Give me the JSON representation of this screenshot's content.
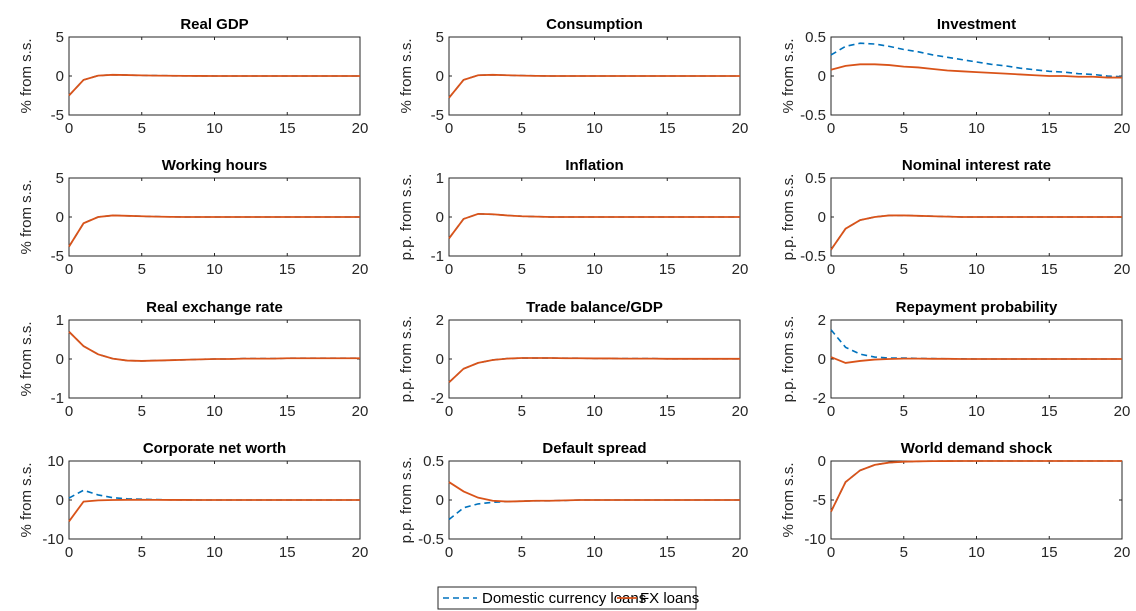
{
  "colors": {
    "domestic": "#0072BD",
    "fx": "#D95319",
    "axis": "#262626"
  },
  "legend": {
    "placement": "bottom-center",
    "items": [
      {
        "label": "Domestic currency loans",
        "style": "dashed",
        "color": "#0072BD"
      },
      {
        "label": "FX loans",
        "style": "solid",
        "color": "#D95319"
      }
    ]
  },
  "chart_data": [
    {
      "type": "line",
      "title": "Real GDP",
      "ylabel": "% from s.s.",
      "xlim": [
        0,
        20
      ],
      "ylim": [
        -5,
        5
      ],
      "xticks": [
        0,
        5,
        10,
        15,
        20
      ],
      "yticks": [
        -5,
        0,
        5
      ],
      "x": [
        0,
        1,
        2,
        3,
        4,
        5,
        6,
        7,
        8,
        9,
        10,
        11,
        12,
        13,
        14,
        15,
        16,
        17,
        18,
        19,
        20
      ],
      "series": [
        {
          "name": "Domestic currency loans",
          "values": [
            -2.5,
            -0.5,
            0.05,
            0.15,
            0.12,
            0.08,
            0.05,
            0.03,
            0.02,
            0.01,
            0,
            0,
            0,
            0,
            0,
            0,
            0,
            0,
            0,
            0,
            0
          ]
        },
        {
          "name": "FX loans",
          "values": [
            -2.5,
            -0.5,
            0.05,
            0.15,
            0.12,
            0.08,
            0.05,
            0.03,
            0.02,
            0.01,
            0,
            0,
            0,
            0,
            0,
            0,
            0,
            0,
            0,
            0,
            0
          ]
        }
      ]
    },
    {
      "type": "line",
      "title": "Consumption",
      "ylabel": "% from s.s.",
      "xlim": [
        0,
        20
      ],
      "ylim": [
        -5,
        5
      ],
      "xticks": [
        0,
        5,
        10,
        15,
        20
      ],
      "yticks": [
        -5,
        0,
        5
      ],
      "x": [
        0,
        1,
        2,
        3,
        4,
        5,
        6,
        7,
        8,
        9,
        10,
        11,
        12,
        13,
        14,
        15,
        16,
        17,
        18,
        19,
        20
      ],
      "series": [
        {
          "name": "Domestic currency loans",
          "values": [
            -2.8,
            -0.5,
            0.1,
            0.15,
            0.1,
            0.05,
            0.02,
            0,
            0,
            0,
            0,
            0,
            0,
            0,
            0,
            0,
            0,
            0,
            0,
            0,
            0
          ]
        },
        {
          "name": "FX loans",
          "values": [
            -2.8,
            -0.5,
            0.1,
            0.15,
            0.1,
            0.05,
            0.02,
            0,
            0,
            0,
            0,
            0,
            0,
            0,
            0,
            0,
            0,
            0,
            0,
            0,
            0
          ]
        }
      ]
    },
    {
      "type": "line",
      "title": "Investment",
      "ylabel": "% from s.s.",
      "xlim": [
        0,
        20
      ],
      "ylim": [
        -0.5,
        0.5
      ],
      "xticks": [
        0,
        5,
        10,
        15,
        20
      ],
      "yticks": [
        -0.5,
        0,
        0.5
      ],
      "x": [
        0,
        1,
        2,
        3,
        4,
        5,
        6,
        7,
        8,
        9,
        10,
        11,
        12,
        13,
        14,
        15,
        16,
        17,
        18,
        19,
        20
      ],
      "series": [
        {
          "name": "Domestic currency loans",
          "values": [
            0.27,
            0.38,
            0.42,
            0.41,
            0.38,
            0.34,
            0.31,
            0.27,
            0.24,
            0.21,
            0.18,
            0.15,
            0.13,
            0.1,
            0.08,
            0.06,
            0.05,
            0.03,
            0.02,
            0.0,
            -0.01
          ]
        },
        {
          "name": "FX loans",
          "values": [
            0.08,
            0.13,
            0.15,
            0.15,
            0.14,
            0.12,
            0.11,
            0.09,
            0.07,
            0.06,
            0.05,
            0.04,
            0.03,
            0.02,
            0.01,
            0.0,
            0.0,
            -0.01,
            -0.01,
            -0.02,
            -0.02
          ]
        }
      ]
    },
    {
      "type": "line",
      "title": "Working hours",
      "ylabel": "% from s.s.",
      "xlim": [
        0,
        20
      ],
      "ylim": [
        -5,
        5
      ],
      "xticks": [
        0,
        5,
        10,
        15,
        20
      ],
      "yticks": [
        -5,
        0,
        5
      ],
      "x": [
        0,
        1,
        2,
        3,
        4,
        5,
        6,
        7,
        8,
        9,
        10,
        11,
        12,
        13,
        14,
        15,
        16,
        17,
        18,
        19,
        20
      ],
      "series": [
        {
          "name": "Domestic currency loans",
          "values": [
            -3.8,
            -0.8,
            0.0,
            0.2,
            0.15,
            0.1,
            0.05,
            0.02,
            0,
            0,
            0,
            0,
            0,
            0,
            0,
            0,
            0,
            0,
            0,
            0,
            0
          ]
        },
        {
          "name": "FX loans",
          "values": [
            -3.8,
            -0.8,
            0.0,
            0.2,
            0.15,
            0.1,
            0.05,
            0.02,
            0,
            0,
            0,
            0,
            0,
            0,
            0,
            0,
            0,
            0,
            0,
            0,
            0
          ]
        }
      ]
    },
    {
      "type": "line",
      "title": "Inflation",
      "ylabel": "p.p. from s.s.",
      "xlim": [
        0,
        20
      ],
      "ylim": [
        -1,
        1
      ],
      "xticks": [
        0,
        5,
        10,
        15,
        20
      ],
      "yticks": [
        -1,
        0,
        1
      ],
      "x": [
        0,
        1,
        2,
        3,
        4,
        5,
        6,
        7,
        8,
        9,
        10,
        11,
        12,
        13,
        14,
        15,
        16,
        17,
        18,
        19,
        20
      ],
      "series": [
        {
          "name": "Domestic currency loans",
          "values": [
            -0.55,
            -0.05,
            0.08,
            0.07,
            0.04,
            0.02,
            0.01,
            0,
            0,
            0,
            0,
            0,
            0,
            0,
            0,
            0,
            0,
            0,
            0,
            0,
            0
          ]
        },
        {
          "name": "FX loans",
          "values": [
            -0.55,
            -0.05,
            0.08,
            0.07,
            0.04,
            0.02,
            0.01,
            0,
            0,
            0,
            0,
            0,
            0,
            0,
            0,
            0,
            0,
            0,
            0,
            0,
            0
          ]
        }
      ]
    },
    {
      "type": "line",
      "title": "Nominal interest rate",
      "ylabel": "p.p. from s.s.",
      "xlim": [
        0,
        20
      ],
      "ylim": [
        -0.5,
        0.5
      ],
      "xticks": [
        0,
        5,
        10,
        15,
        20
      ],
      "yticks": [
        -0.5,
        0,
        0.5
      ],
      "x": [
        0,
        1,
        2,
        3,
        4,
        5,
        6,
        7,
        8,
        9,
        10,
        11,
        12,
        13,
        14,
        15,
        16,
        17,
        18,
        19,
        20
      ],
      "series": [
        {
          "name": "Domestic currency loans",
          "values": [
            -0.42,
            -0.15,
            -0.04,
            0.0,
            0.02,
            0.02,
            0.015,
            0.01,
            0.005,
            0,
            0,
            0,
            0,
            0,
            0,
            0,
            0,
            0,
            0,
            0,
            0
          ]
        },
        {
          "name": "FX loans",
          "values": [
            -0.42,
            -0.15,
            -0.04,
            0.0,
            0.02,
            0.02,
            0.015,
            0.01,
            0.005,
            0,
            0,
            0,
            0,
            0,
            0,
            0,
            0,
            0,
            0,
            0,
            0
          ]
        }
      ]
    },
    {
      "type": "line",
      "title": "Real exchange rate",
      "ylabel": "% from s.s.",
      "xlim": [
        0,
        20
      ],
      "ylim": [
        -1,
        1
      ],
      "xticks": [
        0,
        5,
        10,
        15,
        20
      ],
      "yticks": [
        -1,
        0,
        1
      ],
      "x": [
        0,
        1,
        2,
        3,
        4,
        5,
        6,
        7,
        8,
        9,
        10,
        11,
        12,
        13,
        14,
        15,
        16,
        17,
        18,
        19,
        20
      ],
      "series": [
        {
          "name": "Domestic currency loans",
          "values": [
            0.7,
            0.33,
            0.12,
            0.01,
            -0.04,
            -0.05,
            -0.04,
            -0.03,
            -0.02,
            -0.01,
            0,
            0,
            0.01,
            0.01,
            0.01,
            0.02,
            0.02,
            0.02,
            0.02,
            0.02,
            0.02
          ]
        },
        {
          "name": "FX loans",
          "values": [
            0.7,
            0.33,
            0.12,
            0.01,
            -0.04,
            -0.05,
            -0.04,
            -0.03,
            -0.02,
            -0.01,
            0,
            0,
            0.01,
            0.01,
            0.01,
            0.02,
            0.02,
            0.02,
            0.02,
            0.02,
            0.02
          ]
        }
      ]
    },
    {
      "type": "line",
      "title": "Trade balance/GDP",
      "ylabel": "p.p. from s.s.",
      "xlim": [
        0,
        20
      ],
      "ylim": [
        -2,
        2
      ],
      "xticks": [
        0,
        5,
        10,
        15,
        20
      ],
      "yticks": [
        -2,
        0,
        2
      ],
      "x": [
        0,
        1,
        2,
        3,
        4,
        5,
        6,
        7,
        8,
        9,
        10,
        11,
        12,
        13,
        14,
        15,
        16,
        17,
        18,
        19,
        20
      ],
      "series": [
        {
          "name": "Domestic currency loans",
          "values": [
            -1.2,
            -0.5,
            -0.2,
            -0.05,
            0.02,
            0.05,
            0.05,
            0.05,
            0.04,
            0.04,
            0.03,
            0.03,
            0.02,
            0.02,
            0.02,
            0.01,
            0.01,
            0.01,
            0.01,
            0.01,
            0.01
          ]
        },
        {
          "name": "FX loans",
          "values": [
            -1.2,
            -0.5,
            -0.2,
            -0.05,
            0.02,
            0.05,
            0.05,
            0.05,
            0.04,
            0.04,
            0.03,
            0.03,
            0.02,
            0.02,
            0.02,
            0.01,
            0.01,
            0.01,
            0.01,
            0.01,
            0.01
          ]
        }
      ]
    },
    {
      "type": "line",
      "title": "Repayment probability",
      "ylabel": "p.p. from s.s.",
      "xlim": [
        0,
        20
      ],
      "ylim": [
        -2,
        2
      ],
      "xticks": [
        0,
        5,
        10,
        15,
        20
      ],
      "yticks": [
        -2,
        0,
        2
      ],
      "x": [
        0,
        1,
        2,
        3,
        4,
        5,
        6,
        7,
        8,
        9,
        10,
        11,
        12,
        13,
        14,
        15,
        16,
        17,
        18,
        19,
        20
      ],
      "series": [
        {
          "name": "Domestic currency loans",
          "values": [
            1.5,
            0.6,
            0.25,
            0.1,
            0.05,
            0.05,
            0.03,
            0.02,
            0.01,
            0.01,
            0,
            0,
            0,
            0,
            0,
            0,
            0,
            0,
            0,
            0,
            0
          ]
        },
        {
          "name": "FX loans",
          "values": [
            0.1,
            -0.2,
            -0.1,
            -0.03,
            0.0,
            0.02,
            0.02,
            0.01,
            0.01,
            0,
            0,
            0,
            0,
            0,
            0,
            0,
            0,
            0,
            0,
            0,
            0
          ]
        }
      ]
    },
    {
      "type": "line",
      "title": "Corporate net worth",
      "ylabel": "% from s.s.",
      "xlim": [
        0,
        20
      ],
      "ylim": [
        -10,
        10
      ],
      "xticks": [
        0,
        5,
        10,
        15,
        20
      ],
      "yticks": [
        -10,
        0,
        10
      ],
      "x": [
        0,
        1,
        2,
        3,
        4,
        5,
        6,
        7,
        8,
        9,
        10,
        11,
        12,
        13,
        14,
        15,
        16,
        17,
        18,
        19,
        20
      ],
      "series": [
        {
          "name": "Domestic currency loans",
          "values": [
            0.5,
            2.5,
            1.3,
            0.6,
            0.3,
            0.2,
            0.1,
            0.05,
            0.02,
            0,
            0,
            0,
            0,
            0,
            0,
            0,
            0,
            0,
            0,
            0,
            0
          ]
        },
        {
          "name": "FX loans",
          "values": [
            -5.5,
            -0.4,
            -0.1,
            0.0,
            0.05,
            0.05,
            0.03,
            0.02,
            0.01,
            0,
            0,
            0,
            0,
            0,
            0,
            0,
            0,
            0,
            0,
            0,
            0
          ]
        }
      ]
    },
    {
      "type": "line",
      "title": "Default spread",
      "ylabel": "p.p. from s.s.",
      "xlim": [
        0,
        20
      ],
      "ylim": [
        -0.5,
        0.5
      ],
      "xticks": [
        0,
        5,
        10,
        15,
        20
      ],
      "yticks": [
        -0.5,
        0,
        0.5
      ],
      "x": [
        0,
        1,
        2,
        3,
        4,
        5,
        6,
        7,
        8,
        9,
        10,
        11,
        12,
        13,
        14,
        15,
        16,
        17,
        18,
        19,
        20
      ],
      "series": [
        {
          "name": "Domestic currency loans",
          "values": [
            -0.25,
            -0.1,
            -0.05,
            -0.03,
            -0.02,
            -0.015,
            -0.01,
            -0.01,
            -0.005,
            0,
            0,
            0,
            0,
            0,
            0,
            0,
            0,
            0,
            0,
            0,
            0
          ]
        },
        {
          "name": "FX loans",
          "values": [
            0.23,
            0.11,
            0.03,
            -0.01,
            -0.02,
            -0.015,
            -0.01,
            -0.01,
            -0.005,
            0,
            0,
            0,
            0,
            0,
            0,
            0,
            0,
            0,
            0,
            0,
            0
          ]
        }
      ]
    },
    {
      "type": "line",
      "title": "World demand shock",
      "ylabel": "% from s.s.",
      "xlim": [
        0,
        20
      ],
      "ylim": [
        -10,
        0
      ],
      "xticks": [
        0,
        5,
        10,
        15,
        20
      ],
      "yticks": [
        -10,
        -5,
        0
      ],
      "x": [
        0,
        1,
        2,
        3,
        4,
        5,
        6,
        7,
        8,
        9,
        10,
        11,
        12,
        13,
        14,
        15,
        16,
        17,
        18,
        19,
        20
      ],
      "series": [
        {
          "name": "Domestic currency loans",
          "values": [
            -6.5,
            -2.7,
            -1.2,
            -0.5,
            -0.2,
            -0.09,
            -0.04,
            -0.02,
            -0.01,
            0,
            0,
            0,
            0,
            0,
            0,
            0,
            0,
            0,
            0,
            0,
            0
          ]
        },
        {
          "name": "FX loans",
          "values": [
            -6.5,
            -2.7,
            -1.2,
            -0.5,
            -0.2,
            -0.09,
            -0.04,
            -0.02,
            -0.01,
            0,
            0,
            0,
            0,
            0,
            0,
            0,
            0,
            0,
            0,
            0,
            0
          ]
        }
      ]
    }
  ]
}
